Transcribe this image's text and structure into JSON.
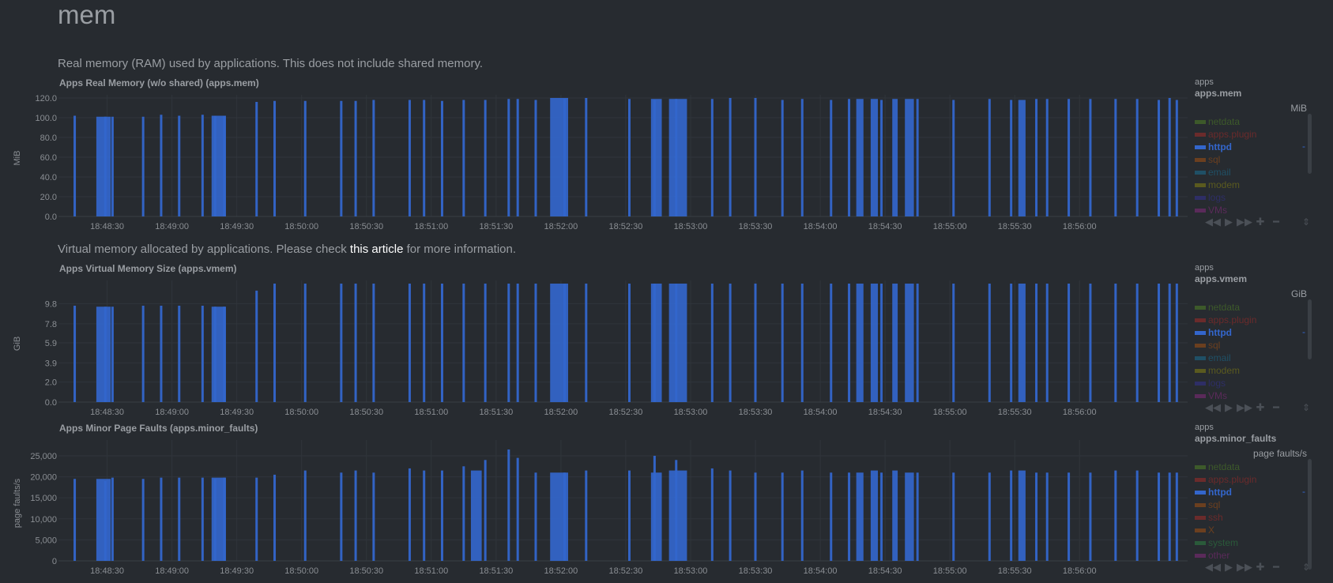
{
  "section": {
    "title": "mem"
  },
  "charts": [
    {
      "description": "Real memory (RAM) used by applications. This does not include shared memory.",
      "title": "Apps Real Memory (w/o shared) (apps.mem)",
      "context": "apps",
      "chart_id": "apps.mem",
      "units": "MiB",
      "ylabel": "MiB",
      "yticks": [
        "120.0",
        "100.0",
        "80.0",
        "60.0",
        "40.0",
        "20.0",
        "0.0"
      ],
      "legend": [
        {
          "name": "netdata",
          "color": "#3d5a2a"
        },
        {
          "name": "apps.plugin",
          "color": "#6b2b2b"
        },
        {
          "name": "httpd",
          "color": "#3366cc",
          "active": true
        },
        {
          "name": "sql",
          "color": "#6b3f1f"
        },
        {
          "name": "email",
          "color": "#1f5066"
        },
        {
          "name": "modem",
          "color": "#5a5a1f"
        },
        {
          "name": "logs",
          "color": "#2e2e66"
        },
        {
          "name": "VMs",
          "color": "#5a2a5a"
        }
      ]
    },
    {
      "description": "Virtual memory allocated by applications. Please check",
      "description_link": "this article",
      "description_after": "for more information.",
      "title": "Apps Virtual Memory Size (apps.vmem)",
      "context": "apps",
      "chart_id": "apps.vmem",
      "units": "GiB",
      "ylabel": "GiB",
      "yticks": [
        "9.8",
        "7.8",
        "5.9",
        "3.9",
        "2.0",
        "0.0"
      ],
      "legend": [
        {
          "name": "netdata",
          "color": "#3d5a2a"
        },
        {
          "name": "apps.plugin",
          "color": "#6b2b2b"
        },
        {
          "name": "httpd",
          "color": "#3366cc",
          "active": true
        },
        {
          "name": "sql",
          "color": "#6b3f1f"
        },
        {
          "name": "email",
          "color": "#1f5066"
        },
        {
          "name": "modem",
          "color": "#5a5a1f"
        },
        {
          "name": "logs",
          "color": "#2e2e66"
        },
        {
          "name": "VMs",
          "color": "#5a2a5a"
        }
      ]
    },
    {
      "title": "Apps Minor Page Faults (apps.minor_faults)",
      "context": "apps",
      "chart_id": "apps.minor_faults",
      "units": "page faults/s",
      "ylabel": "page faults/s",
      "yticks": [
        "25,000",
        "20,000",
        "15,000",
        "10,000",
        "5,000",
        "0"
      ],
      "legend": [
        {
          "name": "netdata",
          "color": "#3d5a2a"
        },
        {
          "name": "apps.plugin",
          "color": "#6b2b2b"
        },
        {
          "name": "httpd",
          "color": "#3366cc",
          "active": true
        },
        {
          "name": "sql",
          "color": "#6b3f1f"
        },
        {
          "name": "ssh",
          "color": "#6b2b2b"
        },
        {
          "name": "X",
          "color": "#6b3f1f"
        },
        {
          "name": "system",
          "color": "#2a5a3a"
        },
        {
          "name": "other",
          "color": "#5a2a5a"
        }
      ]
    }
  ],
  "xticks": [
    "18:48:30",
    "18:49:00",
    "18:49:30",
    "18:50:00",
    "18:50:30",
    "18:51:00",
    "18:51:30",
    "18:52:00",
    "18:52:30",
    "18:53:00",
    "18:53:30",
    "18:54:00",
    "18:54:30",
    "18:55:00",
    "18:55:30",
    "18:56:00"
  ],
  "legend_dash": "-",
  "toolbox": {
    "left": "◀◀",
    "play": "▶",
    "right": "▶▶",
    "zoom_in": "✚",
    "zoom_out": "━",
    "resize": "⇕"
  },
  "chart_data": [
    {
      "type": "area",
      "title": "Apps Real Memory (w/o shared) (apps.mem)",
      "ylabel": "MiB",
      "ylim": [
        0,
        120
      ],
      "series": [
        {
          "name": "httpd",
          "color": "#3366cc",
          "spikes": [
            [
              0.2,
              102
            ],
            [
              1.9,
              101
            ],
            [
              2.3,
              101
            ],
            [
              4.0,
              101
            ],
            [
              5.0,
              103
            ],
            [
              6.0,
              102
            ],
            [
              7.3,
              103
            ],
            [
              8.0,
              102
            ],
            [
              8.5,
              102
            ],
            [
              10.3,
              116
            ],
            [
              11.3,
              117
            ],
            [
              13.0,
              117
            ],
            [
              15.0,
              117
            ],
            [
              15.8,
              117
            ],
            [
              16.8,
              118
            ],
            [
              18.8,
              118
            ],
            [
              19.6,
              118
            ],
            [
              20.6,
              117
            ],
            [
              21.8,
              118
            ],
            [
              23.0,
              118
            ],
            [
              24.3,
              119
            ],
            [
              24.8,
              119
            ],
            [
              25.8,
              118
            ],
            [
              27.4,
              119
            ],
            [
              28.6,
              120
            ],
            [
              31.0,
              119
            ],
            [
              32.4,
              118
            ],
            [
              33.6,
              119
            ],
            [
              35.6,
              119
            ],
            [
              36.6,
              120
            ],
            [
              38.0,
              120
            ],
            [
              39.5,
              118
            ],
            [
              40.6,
              119
            ],
            [
              42.2,
              118
            ],
            [
              43.2,
              119
            ],
            [
              45.0,
              118
            ],
            [
              47.0,
              119
            ],
            [
              49.0,
              118
            ],
            [
              51.0,
              119
            ],
            [
              52.2,
              118
            ],
            [
              53.6,
              119
            ],
            [
              54.2,
              119
            ],
            [
              55.4,
              119
            ],
            [
              56.6,
              119
            ],
            [
              58.0,
              119
            ],
            [
              59.2,
              119
            ],
            [
              60.4,
              118
            ],
            [
              61.0,
              120
            ],
            [
              61.4,
              118
            ]
          ],
          "blocks": [
            [
              1.4,
              2.2,
              101
            ],
            [
              7.8,
              8.6,
              102
            ],
            [
              26.6,
              27.6,
              120
            ],
            [
              32.2,
              32.8,
              119
            ],
            [
              33.2,
              34.2,
              119
            ],
            [
              43.6,
              44.0,
              119
            ],
            [
              44.4,
              44.8,
              119
            ],
            [
              45.6,
              45.9,
              119
            ],
            [
              46.3,
              46.8,
              119
            ],
            [
              52.6,
              53.0,
              118
            ]
          ]
        }
      ]
    },
    {
      "type": "area",
      "title": "Apps Virtual Memory Size (apps.vmem)",
      "ylabel": "GiB",
      "ylim": [
        0,
        11.8
      ],
      "series": [
        {
          "name": "httpd",
          "color": "#3366cc",
          "spikes": [
            [
              0.2,
              9.6
            ],
            [
              1.9,
              9.5
            ],
            [
              2.3,
              9.5
            ],
            [
              4.0,
              9.6
            ],
            [
              5.0,
              9.6
            ],
            [
              6.0,
              9.6
            ],
            [
              7.3,
              9.6
            ],
            [
              8.0,
              9.5
            ],
            [
              8.5,
              9.5
            ],
            [
              10.3,
              11.1
            ],
            [
              11.3,
              11.8
            ],
            [
              13.0,
              11.8
            ],
            [
              15.0,
              11.8
            ],
            [
              15.8,
              11.8
            ],
            [
              16.8,
              11.8
            ],
            [
              18.8,
              11.8
            ],
            [
              19.6,
              11.8
            ],
            [
              20.6,
              11.8
            ],
            [
              21.8,
              11.8
            ],
            [
              23.0,
              11.8
            ],
            [
              24.3,
              11.8
            ],
            [
              24.8,
              11.8
            ],
            [
              25.8,
              11.8
            ],
            [
              27.4,
              11.8
            ],
            [
              28.6,
              11.8
            ],
            [
              31.0,
              11.8
            ],
            [
              32.4,
              11.8
            ],
            [
              33.6,
              11.8
            ],
            [
              35.6,
              11.8
            ],
            [
              36.6,
              11.8
            ],
            [
              38.0,
              11.8
            ],
            [
              39.5,
              11.8
            ],
            [
              40.6,
              11.8
            ],
            [
              42.2,
              11.8
            ],
            [
              43.2,
              11.8
            ],
            [
              45.0,
              11.8
            ],
            [
              47.0,
              11.8
            ],
            [
              49.0,
              11.8
            ],
            [
              51.0,
              11.8
            ],
            [
              52.2,
              11.8
            ],
            [
              53.6,
              11.8
            ],
            [
              54.2,
              11.8
            ],
            [
              55.4,
              11.8
            ],
            [
              56.6,
              11.8
            ],
            [
              58.0,
              11.8
            ],
            [
              59.2,
              11.8
            ],
            [
              60.4,
              11.8
            ],
            [
              61.0,
              11.8
            ],
            [
              61.4,
              11.8
            ]
          ],
          "blocks": [
            [
              1.4,
              2.2,
              9.5
            ],
            [
              7.8,
              8.6,
              9.5
            ],
            [
              26.6,
              27.6,
              11.8
            ],
            [
              32.2,
              32.8,
              11.8
            ],
            [
              33.2,
              34.2,
              11.8
            ],
            [
              43.6,
              44.0,
              11.8
            ],
            [
              44.4,
              44.8,
              11.8
            ],
            [
              45.6,
              45.9,
              11.8
            ],
            [
              46.3,
              46.8,
              11.8
            ],
            [
              52.6,
              53.0,
              11.8
            ]
          ]
        }
      ]
    },
    {
      "type": "area",
      "title": "Apps Minor Page Faults (apps.minor_faults)",
      "ylabel": "page faults/s",
      "ylim": [
        0,
        28000
      ],
      "series": [
        {
          "name": "httpd",
          "color": "#3366cc",
          "spikes": [
            [
              0.2,
              19500
            ],
            [
              1.9,
              19000
            ],
            [
              2.3,
              19800
            ],
            [
              4.0,
              19500
            ],
            [
              5.0,
              19800
            ],
            [
              6.0,
              19800
            ],
            [
              7.3,
              19800
            ],
            [
              8.0,
              19500
            ],
            [
              8.5,
              19800
            ],
            [
              10.3,
              19800
            ],
            [
              11.3,
              20500
            ],
            [
              13.0,
              21500
            ],
            [
              15.0,
              21000
            ],
            [
              15.8,
              21500
            ],
            [
              16.8,
              21000
            ],
            [
              18.8,
              22000
            ],
            [
              19.6,
              21500
            ],
            [
              20.6,
              21500
            ],
            [
              21.8,
              22500
            ],
            [
              23.0,
              24000
            ],
            [
              24.3,
              26500
            ],
            [
              24.8,
              24500
            ],
            [
              25.8,
              21000
            ],
            [
              27.4,
              21000
            ],
            [
              28.6,
              21500
            ],
            [
              31.0,
              21500
            ],
            [
              32.4,
              25000
            ],
            [
              33.6,
              24000
            ],
            [
              35.6,
              22000
            ],
            [
              36.6,
              21500
            ],
            [
              38.0,
              21000
            ],
            [
              39.5,
              21000
            ],
            [
              40.6,
              21500
            ],
            [
              42.2,
              21000
            ],
            [
              43.2,
              21000
            ],
            [
              45.0,
              21000
            ],
            [
              47.0,
              21000
            ],
            [
              49.0,
              21000
            ],
            [
              51.0,
              21000
            ],
            [
              52.2,
              21500
            ],
            [
              53.6,
              21000
            ],
            [
              54.2,
              21000
            ],
            [
              55.4,
              21000
            ],
            [
              56.6,
              21000
            ],
            [
              58.0,
              21500
            ],
            [
              59.2,
              21500
            ],
            [
              60.4,
              21000
            ],
            [
              61.0,
              21000
            ],
            [
              61.4,
              21000
            ]
          ],
          "blocks": [
            [
              1.4,
              2.2,
              19500
            ],
            [
              7.8,
              8.6,
              19800
            ],
            [
              22.2,
              22.8,
              21500
            ],
            [
              26.6,
              27.6,
              21000
            ],
            [
              32.2,
              32.8,
              21000
            ],
            [
              33.2,
              34.2,
              21500
            ],
            [
              43.6,
              44.0,
              21000
            ],
            [
              44.4,
              44.8,
              21500
            ],
            [
              45.6,
              45.9,
              21500
            ],
            [
              46.3,
              46.8,
              21000
            ],
            [
              52.6,
              53.0,
              21500
            ]
          ]
        }
      ]
    }
  ]
}
